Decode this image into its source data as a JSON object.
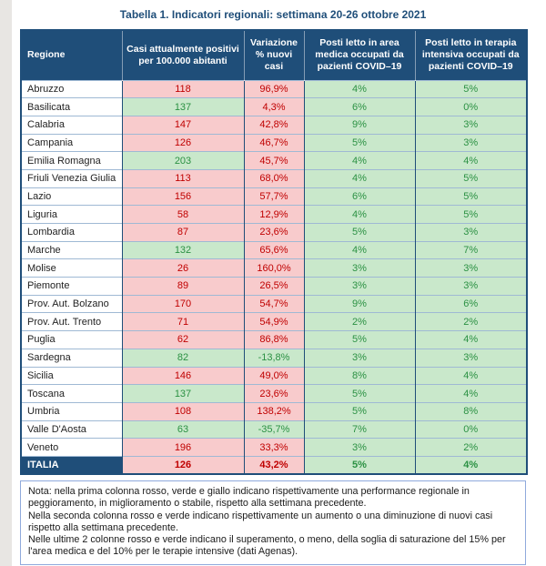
{
  "title": "Tabella 1. Indicatori regionali: settimana 20-26 ottobre 2021",
  "colors": {
    "header_bg": "#1F4E79",
    "title_text": "#1F4E79",
    "worsening_bg": "#F8CBCC",
    "worsening_text": "#C00000",
    "improving_bg": "#C9E8CB",
    "improving_text": "#2B9143",
    "row_line": "#9FB9D4",
    "note_border": "#8FAADC"
  },
  "table": {
    "headers": [
      "Regione",
      "Casi attualmente positivi per 100.000 abitanti",
      "Variazione % nuovi casi",
      "Posti letto in area medica occupati da pazienti COVID–19",
      "Posti letto in terapia intensiva occupati da pazienti COVID–19"
    ],
    "rows": [
      {
        "region": "Abruzzo",
        "casi": "118",
        "casi_color": "red",
        "variazione": "96,9%",
        "variazione_color": "red",
        "area_medica": "4%",
        "area_medica_color": "green",
        "terapia_intensiva": "5%",
        "terapia_intensiva_color": "green",
        "is_total": false
      },
      {
        "region": "Basilicata",
        "casi": "137",
        "casi_color": "green",
        "variazione": "4,3%",
        "variazione_color": "red",
        "area_medica": "6%",
        "area_medica_color": "green",
        "terapia_intensiva": "0%",
        "terapia_intensiva_color": "green",
        "is_total": false
      },
      {
        "region": "Calabria",
        "casi": "147",
        "casi_color": "red",
        "variazione": "42,8%",
        "variazione_color": "red",
        "area_medica": "9%",
        "area_medica_color": "green",
        "terapia_intensiva": "3%",
        "terapia_intensiva_color": "green",
        "is_total": false
      },
      {
        "region": "Campania",
        "casi": "126",
        "casi_color": "red",
        "variazione": "46,7%",
        "variazione_color": "red",
        "area_medica": "5%",
        "area_medica_color": "green",
        "terapia_intensiva": "3%",
        "terapia_intensiva_color": "green",
        "is_total": false
      },
      {
        "region": "Emilia Romagna",
        "casi": "203",
        "casi_color": "green",
        "variazione": "45,7%",
        "variazione_color": "red",
        "area_medica": "4%",
        "area_medica_color": "green",
        "terapia_intensiva": "4%",
        "terapia_intensiva_color": "green",
        "is_total": false
      },
      {
        "region": "Friuli Venezia Giulia",
        "casi": "113",
        "casi_color": "red",
        "variazione": "68,0%",
        "variazione_color": "red",
        "area_medica": "4%",
        "area_medica_color": "green",
        "terapia_intensiva": "5%",
        "terapia_intensiva_color": "green",
        "is_total": false
      },
      {
        "region": "Lazio",
        "casi": "156",
        "casi_color": "red",
        "variazione": "57,7%",
        "variazione_color": "red",
        "area_medica": "6%",
        "area_medica_color": "green",
        "terapia_intensiva": "5%",
        "terapia_intensiva_color": "green",
        "is_total": false
      },
      {
        "region": "Liguria",
        "casi": "58",
        "casi_color": "red",
        "variazione": "12,9%",
        "variazione_color": "red",
        "area_medica": "4%",
        "area_medica_color": "green",
        "terapia_intensiva": "5%",
        "terapia_intensiva_color": "green",
        "is_total": false
      },
      {
        "region": "Lombardia",
        "casi": "87",
        "casi_color": "red",
        "variazione": "23,6%",
        "variazione_color": "red",
        "area_medica": "5%",
        "area_medica_color": "green",
        "terapia_intensiva": "3%",
        "terapia_intensiva_color": "green",
        "is_total": false
      },
      {
        "region": "Marche",
        "casi": "132",
        "casi_color": "green",
        "variazione": "65,6%",
        "variazione_color": "red",
        "area_medica": "4%",
        "area_medica_color": "green",
        "terapia_intensiva": "7%",
        "terapia_intensiva_color": "green",
        "is_total": false
      },
      {
        "region": "Molise",
        "casi": "26",
        "casi_color": "red",
        "variazione": "160,0%",
        "variazione_color": "red",
        "area_medica": "3%",
        "area_medica_color": "green",
        "terapia_intensiva": "3%",
        "terapia_intensiva_color": "green",
        "is_total": false
      },
      {
        "region": "Piemonte",
        "casi": "89",
        "casi_color": "red",
        "variazione": "26,5%",
        "variazione_color": "red",
        "area_medica": "3%",
        "area_medica_color": "green",
        "terapia_intensiva": "3%",
        "terapia_intensiva_color": "green",
        "is_total": false
      },
      {
        "region": "Prov. Aut. Bolzano",
        "casi": "170",
        "casi_color": "red",
        "variazione": "54,7%",
        "variazione_color": "red",
        "area_medica": "9%",
        "area_medica_color": "green",
        "terapia_intensiva": "6%",
        "terapia_intensiva_color": "green",
        "is_total": false
      },
      {
        "region": "Prov. Aut. Trento",
        "casi": "71",
        "casi_color": "red",
        "variazione": "54,9%",
        "variazione_color": "red",
        "area_medica": "2%",
        "area_medica_color": "green",
        "terapia_intensiva": "2%",
        "terapia_intensiva_color": "green",
        "is_total": false
      },
      {
        "region": "Puglia",
        "casi": "62",
        "casi_color": "red",
        "variazione": "86,8%",
        "variazione_color": "red",
        "area_medica": "5%",
        "area_medica_color": "green",
        "terapia_intensiva": "4%",
        "terapia_intensiva_color": "green",
        "is_total": false
      },
      {
        "region": "Sardegna",
        "casi": "82",
        "casi_color": "green",
        "variazione": "-13,8%",
        "variazione_color": "green",
        "area_medica": "3%",
        "area_medica_color": "green",
        "terapia_intensiva": "3%",
        "terapia_intensiva_color": "green",
        "is_total": false
      },
      {
        "region": "Sicilia",
        "casi": "146",
        "casi_color": "red",
        "variazione": "49,0%",
        "variazione_color": "red",
        "area_medica": "8%",
        "area_medica_color": "green",
        "terapia_intensiva": "4%",
        "terapia_intensiva_color": "green",
        "is_total": false
      },
      {
        "region": "Toscana",
        "casi": "137",
        "casi_color": "green",
        "variazione": "23,6%",
        "variazione_color": "red",
        "area_medica": "5%",
        "area_medica_color": "green",
        "terapia_intensiva": "4%",
        "terapia_intensiva_color": "green",
        "is_total": false
      },
      {
        "region": "Umbria",
        "casi": "108",
        "casi_color": "red",
        "variazione": "138,2%",
        "variazione_color": "red",
        "area_medica": "5%",
        "area_medica_color": "green",
        "terapia_intensiva": "8%",
        "terapia_intensiva_color": "green",
        "is_total": false
      },
      {
        "region": "Valle D'Aosta",
        "casi": "63",
        "casi_color": "green",
        "variazione": "-35,7%",
        "variazione_color": "green",
        "area_medica": "7%",
        "area_medica_color": "green",
        "terapia_intensiva": "0%",
        "terapia_intensiva_color": "green",
        "is_total": false
      },
      {
        "region": "Veneto",
        "casi": "196",
        "casi_color": "red",
        "variazione": "33,3%",
        "variazione_color": "red",
        "area_medica": "3%",
        "area_medica_color": "green",
        "terapia_intensiva": "2%",
        "terapia_intensiva_color": "green",
        "is_total": false
      },
      {
        "region": "ITALIA",
        "casi": "126",
        "casi_color": "red",
        "variazione": "43,2%",
        "variazione_color": "red",
        "area_medica": "5%",
        "area_medica_color": "green",
        "terapia_intensiva": "4%",
        "terapia_intensiva_color": "green",
        "is_total": true
      }
    ]
  },
  "note": {
    "p1": "Nota: nella prima colonna rosso, verde e giallo indicano rispettivamente una performance regionale in peggioramento, in miglioramento o stabile, rispetto alla settimana precedente.",
    "p2": "Nella seconda colonna rosso e verde indicano rispettivamente un aumento o una diminuzione di nuovi casi rispetto alla settimana precedente.",
    "p3": "Nelle ultime 2 colonne rosso e verde indicano il superamento, o meno, della soglia di saturazione del 15% per l'area medica e del 10% per le terapie intensive (dati Agenas)."
  }
}
